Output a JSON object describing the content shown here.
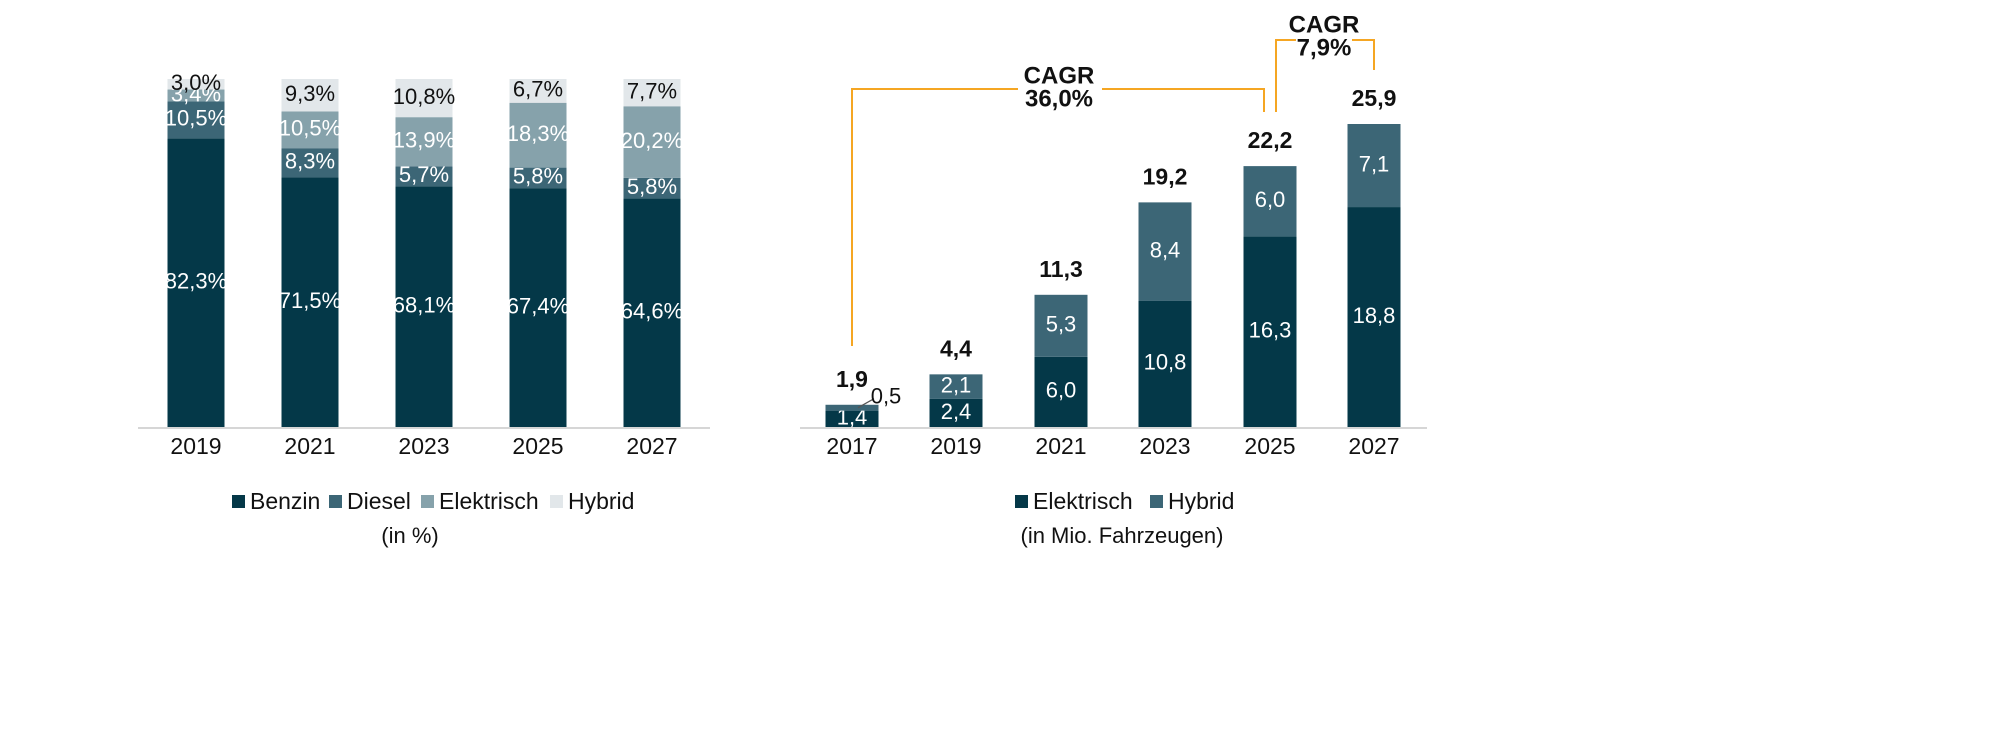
{
  "colors": {
    "benzin": "#043848",
    "diesel": "#3c6676",
    "elektrisch": "#86a2ab",
    "hybrid": "#e2e7ea",
    "axis": "#c8c8c8",
    "bracket": "#f5a623"
  },
  "chart_data": [
    {
      "type": "bar",
      "stacked": true,
      "percent": true,
      "categories": [
        "2019",
        "2021",
        "2023",
        "2025",
        "2027"
      ],
      "series": [
        {
          "name": "Benzin",
          "values": [
            82.3,
            71.5,
            68.1,
            67.4,
            64.6
          ],
          "labels": [
            "82,3%",
            "71,5%",
            "68,1%",
            "67,4%",
            "64,6%"
          ]
        },
        {
          "name": "Diesel",
          "values": [
            10.5,
            8.3,
            5.7,
            5.8,
            5.8
          ],
          "labels": [
            "10,5%",
            "8,3%",
            "5,7%",
            "5,8%",
            "5,8%"
          ]
        },
        {
          "name": "Elektrisch",
          "values": [
            3.4,
            10.5,
            13.9,
            18.3,
            20.2
          ],
          "labels": [
            "3,4%",
            "10,5%",
            "13,9%",
            "18,3%",
            "20,2%"
          ]
        },
        {
          "name": "Hybrid",
          "values": [
            3.0,
            9.3,
            10.8,
            6.7,
            7.7
          ],
          "labels": [
            "3,0%",
            "9,3%",
            "10,8%",
            "6,7%",
            "7,7%"
          ]
        }
      ],
      "unit_label": "(in %)",
      "ylim": [
        0,
        100
      ],
      "legend": "bottom"
    },
    {
      "type": "bar",
      "stacked": true,
      "categories": [
        "2017",
        "2019",
        "2021",
        "2023",
        "2025",
        "2027"
      ],
      "series": [
        {
          "name": "Elektrisch",
          "values": [
            1.4,
            2.4,
            6.0,
            10.8,
            16.3,
            18.8
          ],
          "labels": [
            "1,4",
            "2,4",
            "6,0",
            "10,8",
            "16,3",
            "18,8"
          ]
        },
        {
          "name": "Hybrid",
          "values": [
            0.5,
            2.1,
            5.3,
            8.4,
            6.0,
            7.1
          ],
          "labels": [
            "0,5",
            "2,1",
            "5,3",
            "8,4",
            "6,0",
            "7,1"
          ]
        }
      ],
      "totals": [
        1.9,
        4.4,
        11.3,
        19.2,
        22.2,
        25.9
      ],
      "total_labels": [
        "1,9",
        "4,4",
        "11,3",
        "19,2",
        "22,2",
        "25,9"
      ],
      "unit_label": "(in Mio. Fahrzeugen)",
      "ylim": [
        0,
        25.9
      ],
      "legend": "bottom",
      "annotations": [
        {
          "label": "CAGR",
          "value": "36,0%",
          "from": "2017",
          "to": "2025"
        },
        {
          "label": "CAGR",
          "value": "7,9%",
          "from": "2025",
          "to": "2027"
        }
      ]
    }
  ]
}
